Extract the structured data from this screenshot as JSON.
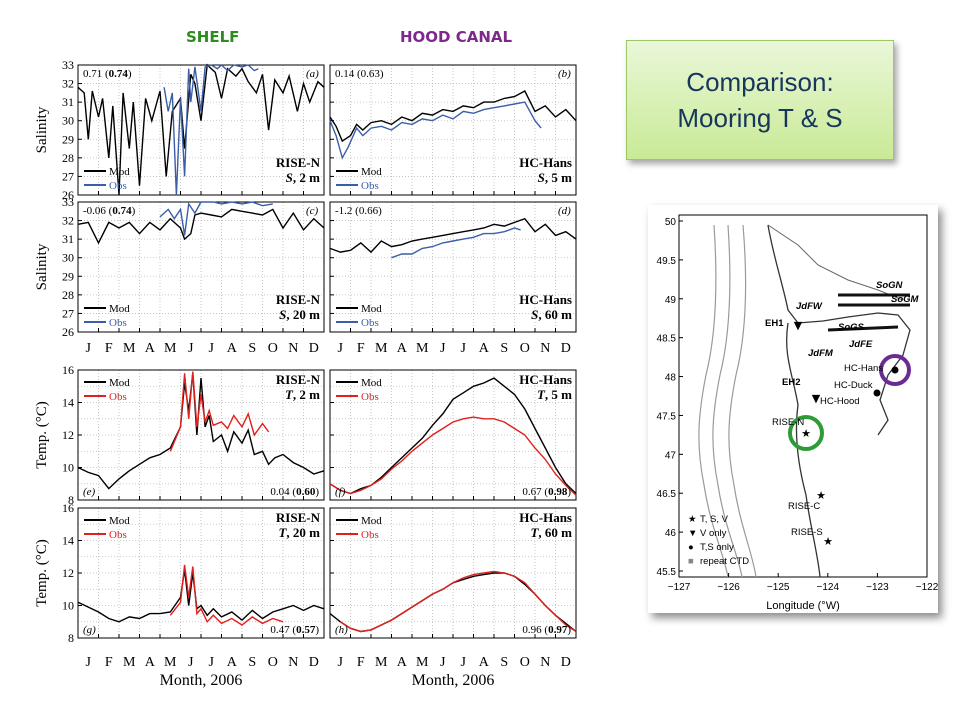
{
  "headers": {
    "shelf": "SHELF",
    "hood": "HOOD CANAL"
  },
  "title": {
    "line1": "Comparison:",
    "line2": "Mooring T & S"
  },
  "months": [
    "J",
    "F",
    "M",
    "A",
    "M",
    "J",
    "J",
    "A",
    "S",
    "O",
    "N",
    "D"
  ],
  "xlabel": "Month, 2006",
  "colors": {
    "mod": "#000000",
    "obs_sal": "#3a5ea8",
    "obs_temp": "#e0201c",
    "shelf": "#2e8b1e",
    "hood": "#7b2a8c",
    "title_bg": "#d8f0b8"
  },
  "panels": {
    "a": {
      "tag": "(a)",
      "stat_a": "0.71 (",
      "stat_b": "0.74",
      "stat_c": ")",
      "station": "RISE-N",
      "var": "S",
      "depth": ", 2 m"
    },
    "b": {
      "tag": "(b)",
      "stat_a": "0.14 (0.63)",
      "stat_b": "",
      "stat_c": "",
      "station": "HC-Hans",
      "var": "S",
      "depth": ", 5 m"
    },
    "c": {
      "tag": "(c)",
      "stat_a": "-0.06 (",
      "stat_b": "0.74",
      "stat_c": ")",
      "station": "RISE-N",
      "var": "S",
      "depth": ", 20 m"
    },
    "d": {
      "tag": "(d)",
      "stat_a": "-1.2 (0.66)",
      "stat_b": "",
      "stat_c": "",
      "station": "HC-Hans",
      "var": "S",
      "depth": ", 60 m"
    },
    "e": {
      "tag": "(e)",
      "stat_a": "0.04 (",
      "stat_b": "0.60",
      "stat_c": ")",
      "station": "RISE-N",
      "var": "T",
      "depth": ", 2 m"
    },
    "f": {
      "tag": "(f)",
      "stat_a": "0.67 (",
      "stat_b": "0.98",
      "stat_c": ")",
      "station": "HC-Hans",
      "var": "T",
      "depth": ", 5 m"
    },
    "g": {
      "tag": "(g)",
      "stat_a": "0.47 (",
      "stat_b": "0.57",
      "stat_c": ")",
      "station": "RISE-N",
      "var": "T",
      "depth": ", 20 m"
    },
    "h": {
      "tag": "(h)",
      "stat_a": "0.96 (",
      "stat_b": "0.97",
      "stat_c": ")",
      "station": "HC-Hans",
      "var": "T",
      "depth": ", 60 m"
    }
  },
  "legend": {
    "mod": "Mod",
    "obs": "Obs"
  },
  "chart_data": [
    {
      "type": "line",
      "panel": "a",
      "ylabel": "Salinity",
      "ylim": [
        26,
        33
      ],
      "x_unit": "month index (0=Jan 1)",
      "series": [
        {
          "name": "Mod",
          "x": [
            0,
            0.3,
            0.5,
            0.7,
            1.0,
            1.2,
            1.5,
            1.7,
            2.0,
            2.2,
            2.5,
            2.7,
            3.0,
            3.3,
            3.6,
            4.0,
            4.3,
            4.6,
            5.0,
            5.2,
            5.5,
            5.7,
            6.0,
            6.3,
            6.7,
            7.0,
            7.3,
            7.7,
            8.0,
            8.3,
            8.7,
            9.0,
            9.3,
            9.6,
            10.0,
            10.3,
            10.7,
            11.0,
            11.3,
            11.7,
            12.0
          ],
          "y": [
            31.8,
            31.5,
            29,
            31.6,
            30.2,
            31.2,
            28,
            30.8,
            26,
            31.5,
            28.5,
            31,
            26.5,
            31.2,
            30,
            31.6,
            27,
            30.5,
            31.2,
            28.5,
            32.5,
            32,
            30,
            33,
            32.6,
            31.2,
            32.8,
            32.4,
            32.8,
            32.1,
            31.5,
            32.5,
            29.5,
            32.2,
            31.5,
            32.4,
            30.5,
            32,
            31,
            32.1,
            31.8
          ]
        },
        {
          "name": "Obs",
          "x": [
            4.2,
            4.4,
            4.6,
            4.8,
            5.0,
            5.2,
            5.4,
            5.5,
            5.7,
            6.0,
            6.2,
            6.5,
            6.8,
            7.0,
            7.3,
            7.6,
            8.0,
            8.3,
            8.6,
            8.8
          ],
          "y": [
            31.8,
            30.5,
            31.5,
            26,
            31.2,
            27,
            32.8,
            31,
            32.9,
            30.5,
            32.9,
            33,
            32.8,
            33,
            32.7,
            33,
            32.9,
            33,
            32.7,
            32.8
          ]
        }
      ]
    },
    {
      "type": "line",
      "panel": "b",
      "ylabel": "Salinity",
      "ylim": [
        26,
        33
      ],
      "series": [
        {
          "name": "Mod",
          "x": [
            0,
            0.3,
            0.6,
            1.0,
            1.3,
            1.6,
            2.0,
            2.5,
            3.0,
            3.5,
            4.0,
            4.5,
            5.0,
            5.5,
            6.0,
            6.5,
            7.0,
            7.5,
            8.0,
            8.5,
            9.0,
            9.5,
            10.0,
            10.5,
            11.0,
            11.5,
            12.0
          ],
          "y": [
            30.2,
            29.7,
            28.9,
            29.2,
            29.8,
            29.5,
            29.9,
            30.0,
            29.8,
            30.2,
            30.0,
            30.4,
            30.3,
            30.6,
            30.5,
            30.8,
            30.7,
            31.0,
            31.0,
            31.2,
            31.3,
            31.6,
            30.5,
            30.8,
            30.2,
            30.6,
            30.0
          ]
        },
        {
          "name": "Obs",
          "x": [
            0,
            0.3,
            0.6,
            0.9,
            1.3,
            1.6,
            2.0,
            2.5,
            3.0,
            3.5,
            4.0,
            4.5,
            5.0,
            5.5,
            6.0,
            6.5,
            7.0,
            7.5,
            8.0,
            8.5,
            9.0,
            9.5,
            10.0,
            10.3
          ],
          "y": [
            30,
            29.2,
            28.0,
            28.6,
            29.6,
            29.2,
            29.6,
            29.7,
            29.5,
            29.9,
            29.8,
            30.1,
            30.0,
            30.3,
            30.1,
            30.5,
            30.4,
            30.6,
            30.7,
            30.8,
            30.9,
            31.0,
            30.0,
            29.6
          ]
        }
      ]
    },
    {
      "type": "line",
      "panel": "c",
      "ylabel": "Salinity",
      "ylim": [
        26,
        33
      ],
      "series": [
        {
          "name": "Mod",
          "x": [
            0,
            0.5,
            1.0,
            1.5,
            2.0,
            2.5,
            3.0,
            3.5,
            4.0,
            4.5,
            5.0,
            5.2,
            5.5,
            5.7,
            6.0,
            6.5,
            7.0,
            7.5,
            8.0,
            8.5,
            9.0,
            9.5,
            10.0,
            10.5,
            11.0,
            11.5,
            12.0
          ],
          "y": [
            31.8,
            31.9,
            30.8,
            31.9,
            31.6,
            31.9,
            31.3,
            31.9,
            31.5,
            32.1,
            31.6,
            31.0,
            31.3,
            32.3,
            32.4,
            32.3,
            32.2,
            32.6,
            32.5,
            32.4,
            32.3,
            32.6,
            31.6,
            32.4,
            31.5,
            32.1,
            31.6
          ]
        },
        {
          "name": "Obs",
          "x": [
            4.0,
            4.4,
            4.7,
            5.0,
            5.2,
            5.4,
            5.7,
            6.0,
            6.3,
            6.6,
            7.0,
            7.5,
            8.0,
            8.5,
            9.0,
            9.5
          ],
          "y": [
            32.2,
            32.6,
            32.1,
            32.6,
            31.2,
            32.9,
            32.4,
            33.2,
            33.0,
            33.1,
            32.9,
            33.0,
            32.9,
            33.0,
            32.8,
            32.9
          ]
        }
      ]
    },
    {
      "type": "line",
      "panel": "d",
      "ylabel": "Salinity",
      "ylim": [
        26,
        33
      ],
      "series": [
        {
          "name": "Mod",
          "x": [
            0,
            0.5,
            1.0,
            1.5,
            2.0,
            2.5,
            3.0,
            3.5,
            4.0,
            4.5,
            5.0,
            5.5,
            6.0,
            6.5,
            7.0,
            7.5,
            8.0,
            8.5,
            9.0,
            9.5,
            10.0,
            10.5,
            11.0,
            11.5,
            12.0
          ],
          "y": [
            30.5,
            30.3,
            30.4,
            30.8,
            30.3,
            30.9,
            30.6,
            30.7,
            30.9,
            31.0,
            31.1,
            31.2,
            31.3,
            31.4,
            31.5,
            31.6,
            31.8,
            31.7,
            31.9,
            32.1,
            31.4,
            31.8,
            31.2,
            31.4,
            31.0
          ]
        },
        {
          "name": "Obs",
          "x": [
            3.0,
            3.5,
            4.0,
            4.5,
            5.0,
            5.5,
            6.0,
            6.5,
            7.0,
            7.5,
            8.0,
            8.5,
            9.0,
            9.3
          ],
          "y": [
            30.0,
            30.2,
            30.2,
            30.5,
            30.6,
            30.8,
            30.9,
            31.0,
            31.1,
            31.3,
            31.3,
            31.4,
            31.6,
            31.5
          ]
        }
      ]
    },
    {
      "type": "line",
      "panel": "e",
      "ylabel": "Temp. (°C)",
      "ylim": [
        8,
        16
      ],
      "series": [
        {
          "name": "Mod",
          "x": [
            0,
            0.5,
            1.0,
            1.5,
            2.0,
            2.5,
            3.0,
            3.5,
            4.0,
            4.5,
            5.0,
            5.2,
            5.4,
            5.6,
            5.8,
            6.0,
            6.2,
            6.4,
            6.6,
            7.0,
            7.3,
            7.6,
            8.0,
            8.3,
            8.6,
            9.0,
            9.3,
            9.6,
            10.0,
            10.5,
            11.0,
            11.5,
            12.0
          ],
          "y": [
            10.0,
            9.7,
            9.5,
            8.7,
            9.3,
            9.8,
            10.2,
            10.6,
            10.8,
            11.2,
            12.5,
            15.2,
            13.5,
            15.8,
            12.0,
            15.5,
            12.5,
            13.2,
            11.6,
            12.0,
            11.0,
            12.2,
            11.5,
            12.3,
            10.8,
            11.0,
            10.2,
            10.6,
            10.8,
            10.3,
            10.0,
            9.6,
            9.8
          ]
        },
        {
          "name": "Obs",
          "x": [
            4.5,
            5.0,
            5.2,
            5.4,
            5.6,
            5.8,
            6.0,
            6.2,
            6.4,
            6.6,
            7.0,
            7.3,
            7.6,
            8.0,
            8.3,
            8.6,
            9.0,
            9.3
          ],
          "y": [
            11.0,
            12.5,
            15.8,
            13.0,
            15.9,
            12.5,
            14.5,
            12.8,
            13.5,
            12.6,
            12.8,
            12.4,
            13.2,
            12.5,
            13.3,
            12.0,
            12.7,
            12.2
          ]
        }
      ]
    },
    {
      "type": "line",
      "panel": "f",
      "ylabel": "Temp. (°C)",
      "ylim": [
        8,
        16
      ],
      "series": [
        {
          "name": "Mod",
          "x": [
            0,
            0.5,
            1.0,
            1.5,
            2.0,
            2.5,
            3.0,
            3.5,
            4.0,
            4.5,
            5.0,
            5.5,
            6.0,
            6.5,
            7.0,
            7.5,
            8.0,
            8.5,
            9.0,
            9.5,
            10.0,
            10.5,
            11.0,
            11.5,
            12.0
          ],
          "y": [
            9.0,
            8.6,
            8.4,
            8.7,
            8.9,
            9.4,
            10.0,
            10.6,
            11.2,
            11.8,
            12.6,
            13.3,
            14.2,
            14.6,
            15.0,
            15.2,
            15.5,
            15.0,
            14.5,
            13.6,
            12.4,
            11.2,
            10.0,
            9.0,
            8.4
          ]
        },
        {
          "name": "Obs",
          "x": [
            0,
            0.5,
            1.0,
            1.5,
            2.0,
            2.5,
            3.0,
            3.5,
            4.0,
            4.5,
            5.0,
            5.5,
            6.0,
            6.5,
            7.0,
            7.5,
            8.0,
            8.5,
            9.0,
            9.5,
            10.0,
            10.5,
            11.0,
            11.5,
            12.0
          ],
          "y": [
            9.0,
            8.6,
            8.4,
            8.6,
            8.9,
            9.3,
            9.9,
            10.4,
            11.0,
            11.5,
            12.0,
            12.4,
            12.8,
            13.0,
            13.1,
            13.0,
            13.0,
            12.8,
            12.4,
            12.0,
            11.2,
            10.5,
            9.6,
            8.9,
            8.3
          ]
        }
      ]
    },
    {
      "type": "line",
      "panel": "g",
      "ylabel": "Temp. (°C)",
      "ylim": [
        8,
        16
      ],
      "series": [
        {
          "name": "Mod",
          "x": [
            0,
            0.5,
            1.0,
            1.5,
            2.0,
            2.5,
            3.0,
            3.5,
            4.0,
            4.5,
            5.0,
            5.2,
            5.4,
            5.6,
            5.8,
            6.0,
            6.3,
            6.6,
            7.0,
            7.5,
            8.0,
            8.5,
            9.0,
            9.5,
            10.0,
            10.5,
            11.0,
            11.5,
            12.0
          ],
          "y": [
            10.2,
            9.9,
            9.6,
            9.2,
            9.0,
            9.3,
            9.2,
            9.5,
            9.5,
            9.6,
            10.5,
            12.2,
            10.0,
            12.0,
            9.8,
            10.0,
            9.4,
            9.8,
            9.3,
            9.6,
            9.1,
            9.7,
            9.2,
            9.6,
            9.8,
            10.0,
            9.7,
            10.0,
            9.8
          ]
        },
        {
          "name": "Obs",
          "x": [
            4.5,
            5.0,
            5.2,
            5.4,
            5.6,
            5.8,
            6.0,
            6.3,
            6.6,
            7.0,
            7.5,
            8.0,
            8.5,
            9.0,
            9.5,
            10.0
          ],
          "y": [
            9.4,
            10.2,
            12.5,
            10.5,
            12.4,
            9.5,
            9.8,
            9.0,
            9.4,
            8.9,
            9.2,
            8.8,
            9.3,
            8.9,
            9.2,
            9.0
          ]
        }
      ]
    },
    {
      "type": "line",
      "panel": "h",
      "ylabel": "Temp. (°C)",
      "ylim": [
        8,
        16
      ],
      "series": [
        {
          "name": "Mod",
          "x": [
            0,
            0.5,
            1.0,
            1.5,
            2.0,
            2.5,
            3.0,
            3.5,
            4.0,
            4.5,
            5.0,
            5.5,
            6.0,
            6.5,
            7.0,
            7.5,
            8.0,
            8.5,
            9.0,
            9.5,
            10.0,
            10.5,
            11.0,
            11.5,
            12.0
          ],
          "y": [
            9.5,
            9.0,
            8.6,
            8.4,
            8.5,
            8.8,
            9.1,
            9.5,
            9.9,
            10.3,
            10.7,
            11.0,
            11.4,
            11.6,
            11.8,
            11.9,
            12.0,
            12.0,
            11.8,
            11.3,
            10.7,
            10.0,
            9.4,
            8.9,
            8.4
          ]
        },
        {
          "name": "Obs",
          "x": [
            0.5,
            1.0,
            1.5,
            2.0,
            2.5,
            3.0,
            3.5,
            4.0,
            4.5,
            5.0,
            5.5,
            6.0,
            6.5,
            7.0,
            7.5,
            8.0,
            8.5,
            9.0,
            9.5,
            10.0,
            10.5,
            11.0,
            11.5,
            12.0
          ],
          "y": [
            9.0,
            8.6,
            8.4,
            8.5,
            8.8,
            9.1,
            9.5,
            9.9,
            10.3,
            10.7,
            11.0,
            11.4,
            11.7,
            11.9,
            12.0,
            12.1,
            12.0,
            11.8,
            11.4,
            10.7,
            10.0,
            9.4,
            8.8,
            8.4
          ]
        }
      ]
    }
  ],
  "map": {
    "xlabel": "Longitude (°W)",
    "xticks": [
      "−127",
      "−126",
      "−125",
      "−124",
      "−123",
      "−122"
    ],
    "yticks": [
      "45.5",
      "46",
      "46.5",
      "47",
      "47.5",
      "48",
      "48.5",
      "49",
      "49.5",
      "50"
    ],
    "labels": {
      "sogn": "SoGN",
      "sogm": "SoGM",
      "sogs": "SoGS",
      "jdfw": "JdFW",
      "jdfm": "JdFM",
      "jdfe": "JdFE",
      "eh1": "EH1",
      "eh2": "EH2",
      "hchans": "HC-Hans",
      "hcduck": "HC-Duck",
      "hchood": "HC-Hood",
      "risen": "RISE-N",
      "risec": "RISE-C",
      "rises": "RISE-S"
    },
    "legend": [
      "T, S, V",
      "V only",
      "T,S only",
      "repeat CTD"
    ],
    "legend_glyphs": [
      "★",
      "▼",
      "●",
      "■"
    ]
  }
}
